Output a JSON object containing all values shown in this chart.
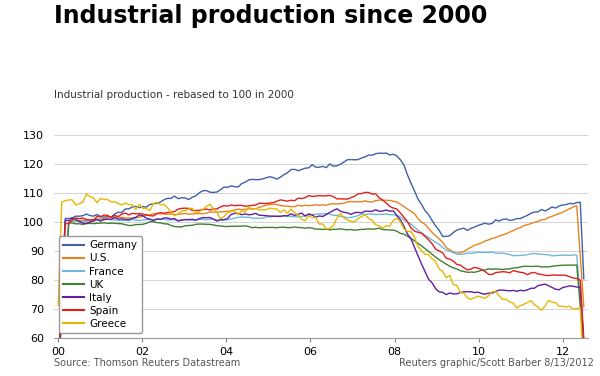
{
  "title": "Industrial production since 2000",
  "subtitle": "Industrial production - rebased to 100 in 2000",
  "footer_left": "Source: Thomson Reuters Datastream",
  "footer_right": "Reuters graphic/Scott Barber 8/13/2012",
  "ylim": [
    60,
    130
  ],
  "yticks": [
    60,
    70,
    80,
    90,
    100,
    110,
    120,
    130
  ],
  "xtick_labels": [
    "00",
    "02",
    "04",
    "06",
    "08",
    "10",
    "12"
  ],
  "xtick_vals": [
    0,
    2,
    4,
    6,
    8,
    10,
    12
  ],
  "colors": {
    "Germany": "#4060A8",
    "U.S.": "#E8821E",
    "France": "#70B8D8",
    "UK": "#408030",
    "Italy": "#6020A0",
    "Spain": "#E02020",
    "Greece": "#E8B800"
  },
  "background": "#FFFFFF",
  "grid_color": "#CCCCCC"
}
